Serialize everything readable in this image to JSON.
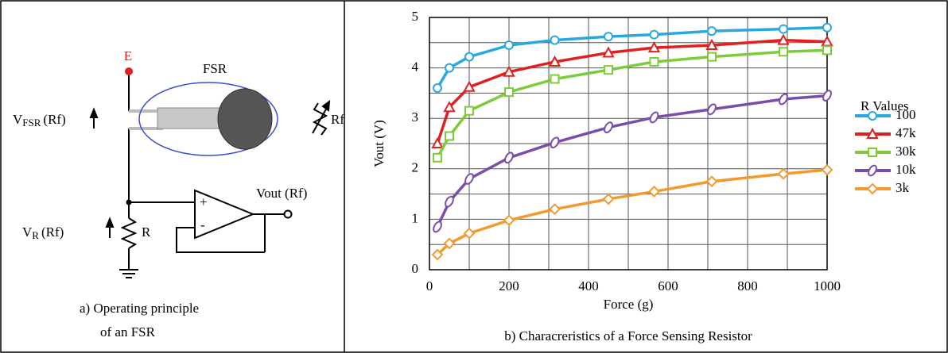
{
  "diagram": {
    "e_label": "E",
    "fsr_label": "FSR",
    "vfsr": {
      "main": "V",
      "sub": "FSR",
      "tail": "(Rf)"
    },
    "rf_label": "Rf",
    "vout_label": "Vout (Rf)",
    "vr": {
      "main": "V",
      "sub": "R",
      "tail": "(Rf)"
    },
    "r_label": "R",
    "plus": "+",
    "minus": "-",
    "caption_line1": "a)  Operating principle",
    "caption_line2": "of an FSR"
  },
  "chart_data": {
    "type": "line",
    "caption": "b) Characreristics of  a Force Sensing Resistor",
    "xlabel": "Force (g)",
    "ylabel": "Vout (V)",
    "legend_title": "R Values",
    "legend": "right",
    "x": [
      20,
      50,
      100,
      200,
      315,
      450,
      565,
      710,
      890,
      1000
    ],
    "xlim": [
      0,
      1000
    ],
    "xticks": [
      0,
      200,
      400,
      600,
      800,
      1000
    ],
    "xminorticks": [
      100,
      300,
      500,
      700,
      900
    ],
    "ylim": [
      0,
      5
    ],
    "yticks": [
      0,
      1,
      2,
      3,
      4,
      5
    ],
    "yminorticks": [
      0.5,
      1.5,
      2.5,
      3.5,
      4.5
    ],
    "grid": true,
    "series": [
      {
        "name": "100",
        "color": "#29a8e0",
        "marker": "circle",
        "values": [
          3.6,
          4.0,
          4.22,
          4.45,
          4.55,
          4.62,
          4.66,
          4.73,
          4.77,
          4.8
        ]
      },
      {
        "name": "47k",
        "color": "#e02020",
        "marker": "triangle",
        "values": [
          2.5,
          3.22,
          3.62,
          3.92,
          4.12,
          4.3,
          4.4,
          4.45,
          4.55,
          4.52
        ]
      },
      {
        "name": "30k",
        "color": "#7ccc3a",
        "marker": "square",
        "values": [
          2.22,
          2.65,
          3.15,
          3.52,
          3.78,
          3.96,
          4.12,
          4.22,
          4.32,
          4.35
        ]
      },
      {
        "name": "10k",
        "color": "#7a4ea8",
        "marker": "ellipse",
        "values": [
          0.85,
          1.35,
          1.8,
          2.22,
          2.52,
          2.82,
          3.02,
          3.18,
          3.38,
          3.45
        ]
      },
      {
        "name": "3k",
        "color": "#f29a2e",
        "marker": "diamond",
        "values": [
          0.3,
          0.52,
          0.72,
          0.98,
          1.2,
          1.4,
          1.55,
          1.75,
          1.9,
          1.98
        ]
      }
    ]
  }
}
